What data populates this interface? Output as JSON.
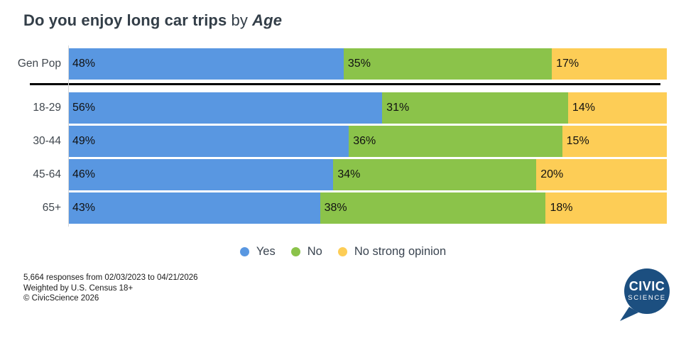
{
  "title": {
    "main": "Do you enjoy long car trips",
    "connector": " by ",
    "breakout": "Age"
  },
  "chart_data": {
    "type": "bar",
    "orientation": "horizontal",
    "stacked": true,
    "normalized_to_100_percent": true,
    "categories": [
      "Gen Pop",
      "18-29",
      "30-44",
      "45-64",
      "65+"
    ],
    "series": [
      {
        "name": "Yes",
        "color": "#5997e1",
        "values": [
          48,
          56,
          49,
          46,
          43
        ]
      },
      {
        "name": "No",
        "color": "#8bc34a",
        "values": [
          35,
          31,
          36,
          34,
          38
        ]
      },
      {
        "name": "No strong opinion",
        "color": "#fdcd56",
        "values": [
          17,
          14,
          15,
          20,
          18
        ]
      }
    ],
    "value_suffix": "%",
    "title": "Do you enjoy long car trips by Age",
    "xlabel": "",
    "ylabel": "",
    "xlim": [
      0,
      100
    ],
    "grid": false,
    "legend_position": "bottom",
    "genpop_separator_after_first_row": true
  },
  "footer": {
    "line1": "5,664 responses from 02/03/2023 to 04/21/2026",
    "line2": "Weighted by U.S. Census 18+",
    "line3": "© CivicScience 2026"
  },
  "logo": {
    "line1": "CIVIC",
    "line2": "SCIENCE",
    "color": "#1c4f80"
  }
}
